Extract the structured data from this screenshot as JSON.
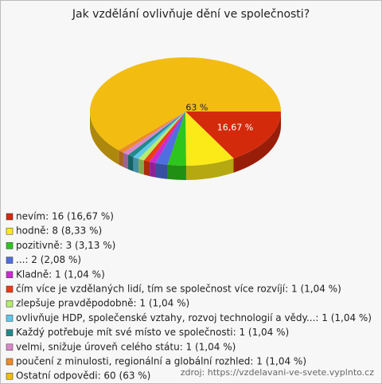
{
  "chart_data": {
    "type": "pie",
    "title": "Jak vzdělání ovlivňuje dění ve společnosti?",
    "categories": [
      "nevím: 16 (16,67 %)",
      "hodně: 8 (8,33 %)",
      "pozitivně: 3 (3,13 %)",
      "...: 2 (2,08 %)",
      "Kladně: 1 (1,04 %)",
      "čím více je vzdělaných lidí, tím se společnost více rozvíjí: 1 (1,04 %)",
      "zlepšuje pravděpodobně: 1 (1,04 %)",
      "ovlivňuje HDP, společenské vztahy, rozvoj technologií a vědy...: 1 (1,04 %)",
      "Každý potřebuje mít své místo ve společnosti: 1 (1,04 %)",
      "velmi, snižuje úroveň celého státu: 1 (1,04 %)",
      "poučení z minulosti, regionální a globální rozhled: 1 (1,04 %)",
      "Ostatní odpovědi: 60 (63 %)"
    ],
    "values": [
      16.67,
      8.33,
      3.13,
      2.08,
      1.04,
      1.04,
      1.04,
      1.04,
      1.04,
      1.04,
      1.04,
      63
    ],
    "value_labels": [
      "16,67 %",
      null,
      null,
      null,
      null,
      null,
      null,
      null,
      null,
      null,
      null,
      "63 %"
    ],
    "colors": [
      "#d42a0c",
      "#fbea18",
      "#2ec51c",
      "#4f6ee0",
      "#c92bd0",
      "#ef3a14",
      "#b6ec6c",
      "#5fc7ea",
      "#1f8a8c",
      "#d888c8",
      "#ec8a2a",
      "#f2bd10"
    ],
    "source": "zdroj: https://vzdelavani-ve-svete.vyplnto.cz"
  }
}
